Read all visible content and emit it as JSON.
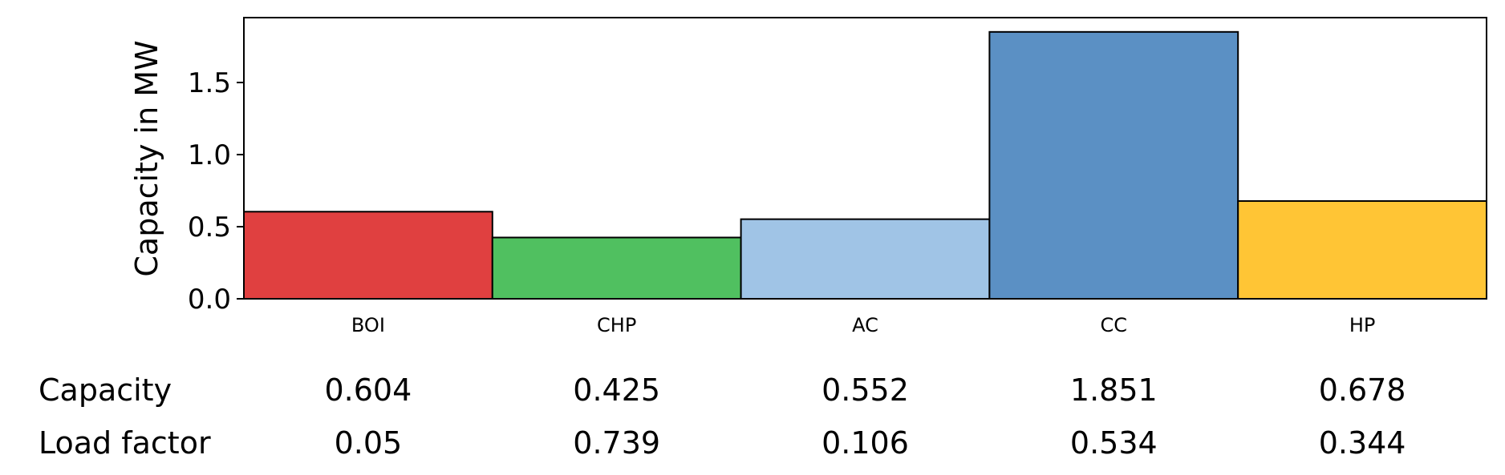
{
  "chart_data": {
    "type": "bar",
    "categories": [
      "BOI",
      "CHP",
      "AC",
      "CC",
      "HP"
    ],
    "values": [
      0.604,
      0.425,
      0.552,
      1.851,
      0.678
    ],
    "colors": [
      "#e04040",
      "#50c060",
      "#a0c4e6",
      "#5b90c4",
      "#ffc535"
    ],
    "ylabel": "Capacity in MW",
    "xlabel": "",
    "ylim": [
      0,
      1.95
    ],
    "yticks": [
      "0.0",
      "0.5",
      "1.0",
      "1.5"
    ],
    "table": {
      "rows": [
        {
          "label": "Capacity",
          "values": [
            "0.604",
            "0.425",
            "0.552",
            "1.851",
            "0.678"
          ]
        },
        {
          "label": "Load factor",
          "values": [
            "0.05",
            "0.739",
            "0.106",
            "0.534",
            "0.344"
          ]
        }
      ]
    }
  }
}
